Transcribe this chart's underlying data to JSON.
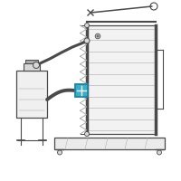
{
  "bg_color": "#ffffff",
  "line_color": "#4a4a4a",
  "highlight_color": "#3aaccc",
  "light_gray": "#d8d8d8",
  "mid_gray": "#aaaaaa",
  "dark_gray": "#666666",
  "fig_w": 2.0,
  "fig_h": 2.0,
  "dpi": 100,
  "xlim": [
    0,
    200
  ],
  "ylim": [
    0,
    200
  ]
}
